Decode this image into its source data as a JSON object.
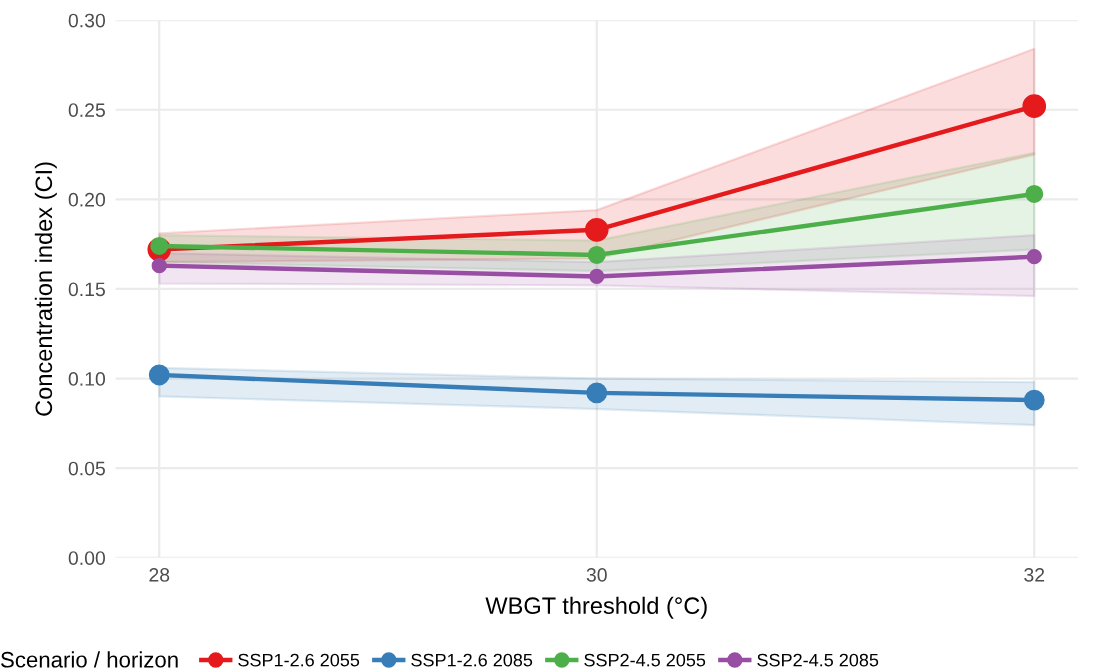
{
  "chart_data": {
    "type": "line",
    "xlabel": "WBGT threshold (°C)",
    "ylabel": "Concentration index (CI)",
    "legend_title": "Scenario / horizon",
    "x": [
      28,
      30,
      32
    ],
    "xlim": [
      27.8,
      32.2
    ],
    "xticks": [
      28,
      30,
      32
    ],
    "ylim": [
      0,
      0.3
    ],
    "yticks": [
      {
        "value": 0,
        "label": "0.00"
      },
      {
        "value": 0.05,
        "label": "0.05"
      },
      {
        "value": 0.1,
        "label": "0.10"
      },
      {
        "value": 0.15,
        "label": "0.15"
      },
      {
        "value": 0.2,
        "label": "0.20"
      },
      {
        "value": 0.25,
        "label": "0.25"
      },
      {
        "value": 0.3,
        "label": "0.30"
      }
    ],
    "grid": true,
    "legend": "bottom",
    "marker": "circle",
    "line_style": "solid",
    "series": [
      {
        "name": "SSP1-2.6 2055",
        "color": "#e41a1c",
        "values": [
          0.172,
          0.183,
          0.252
        ],
        "lower": [
          0.165,
          0.167,
          0.225
        ],
        "upper": [
          0.181,
          0.194,
          0.284
        ]
      },
      {
        "name": "SSP1-2.6 2085",
        "color": "#377eb8",
        "values": [
          0.102,
          0.092,
          0.088
        ],
        "lower": [
          0.09,
          0.083,
          0.074
        ],
        "upper": [
          0.106,
          0.1,
          0.098
        ]
      },
      {
        "name": "SSP2-4.5 2055",
        "color": "#4daf4a",
        "values": [
          0.174,
          0.169,
          0.203
        ],
        "lower": [
          0.165,
          0.16,
          0.172
        ],
        "upper": [
          0.18,
          0.177,
          0.226
        ]
      },
      {
        "name": "SSP2-4.5 2085",
        "color": "#984ea3",
        "values": [
          0.163,
          0.157,
          0.168
        ],
        "lower": [
          0.153,
          0.152,
          0.146
        ],
        "upper": [
          0.17,
          0.165,
          0.18
        ]
      }
    ]
  }
}
